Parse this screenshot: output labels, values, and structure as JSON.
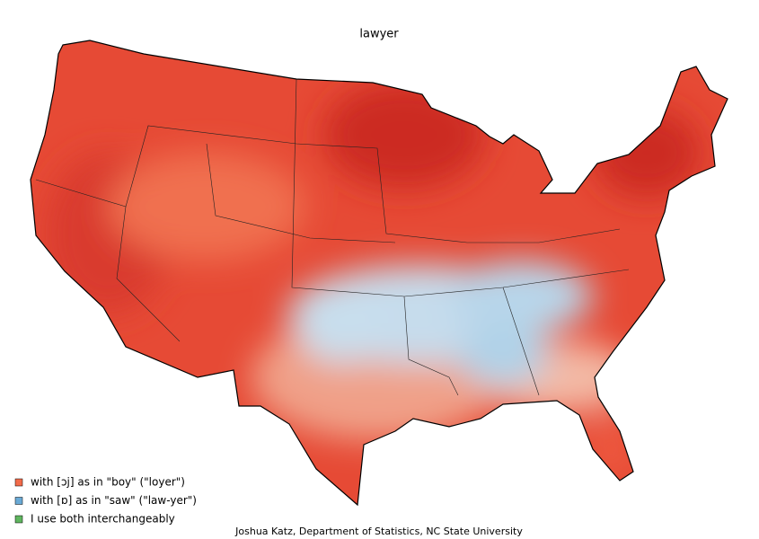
{
  "title": "lawyer",
  "legend": [
    {
      "label": "with [ɔj] as in \"boy\" (\"loyer\")",
      "color": "#f26b4a"
    },
    {
      "label": "with [ɒ] as in \"saw\" (\"law-yer\")",
      "color": "#6aaad6"
    },
    {
      "label": "I use both interchangeably",
      "color": "#5fb65f"
    }
  ],
  "credit": "Joshua Katz, Department of Statistics, NC State University"
}
